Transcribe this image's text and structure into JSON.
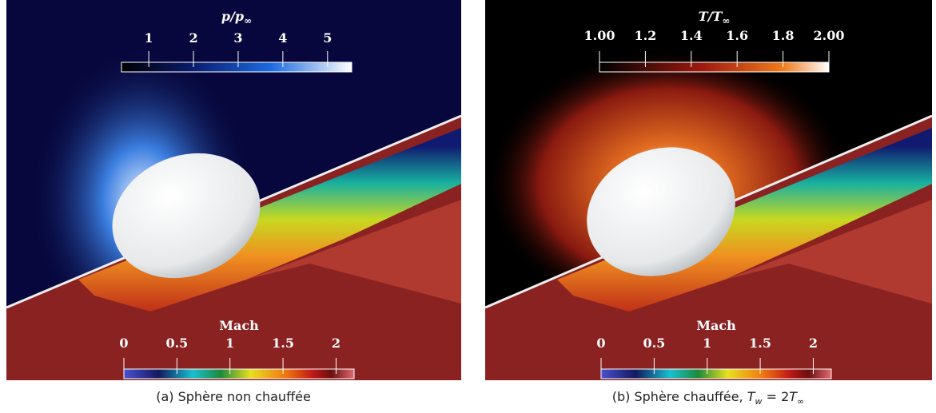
{
  "panels": [
    {
      "caption": [
        "(a) Sphère non chauffée"
      ],
      "colorbars": [
        {
          "title": [
            "p/p",
            "∞"
          ],
          "range": [
            0.39,
            5.54
          ],
          "ticks": [
            {
              "value": 1,
              "label": "1"
            },
            {
              "value": 2,
              "label": "2"
            },
            {
              "value": 3,
              "label": "3"
            },
            {
              "value": 4,
              "label": "4"
            },
            {
              "value": 5,
              "label": "5"
            }
          ]
        },
        {
          "title": [
            "Mach"
          ],
          "range": [
            0,
            2.17
          ],
          "ticks": [
            {
              "value": 0,
              "label": "0"
            },
            {
              "value": 0.5,
              "label": "0.5"
            },
            {
              "value": 1,
              "label": "1"
            },
            {
              "value": 1.5,
              "label": "1.5"
            },
            {
              "value": 2,
              "label": "2"
            }
          ]
        }
      ]
    },
    {
      "caption": [
        "(b) Sphère chauffée, ",
        "T",
        "w",
        " = 2",
        "T",
        "∞"
      ],
      "colorbars": [
        {
          "title": [
            "T/T",
            "∞"
          ],
          "range": [
            1,
            2
          ],
          "ticks": [
            {
              "value": 1,
              "label": "1.00"
            },
            {
              "value": 1.2,
              "label": "1.2"
            },
            {
              "value": 1.4,
              "label": "1.4"
            },
            {
              "value": 1.6,
              "label": "1.6"
            },
            {
              "value": 1.8,
              "label": "1.8"
            },
            {
              "value": 2,
              "label": "2.00"
            }
          ]
        },
        {
          "title": [
            "Mach"
          ],
          "range": [
            0,
            2.17
          ],
          "ticks": [
            {
              "value": 0,
              "label": "0"
            },
            {
              "value": 0.5,
              "label": "0.5"
            },
            {
              "value": 1,
              "label": "1"
            },
            {
              "value": 1.5,
              "label": "1.5"
            },
            {
              "value": 2,
              "label": "2"
            }
          ]
        }
      ]
    }
  ]
}
